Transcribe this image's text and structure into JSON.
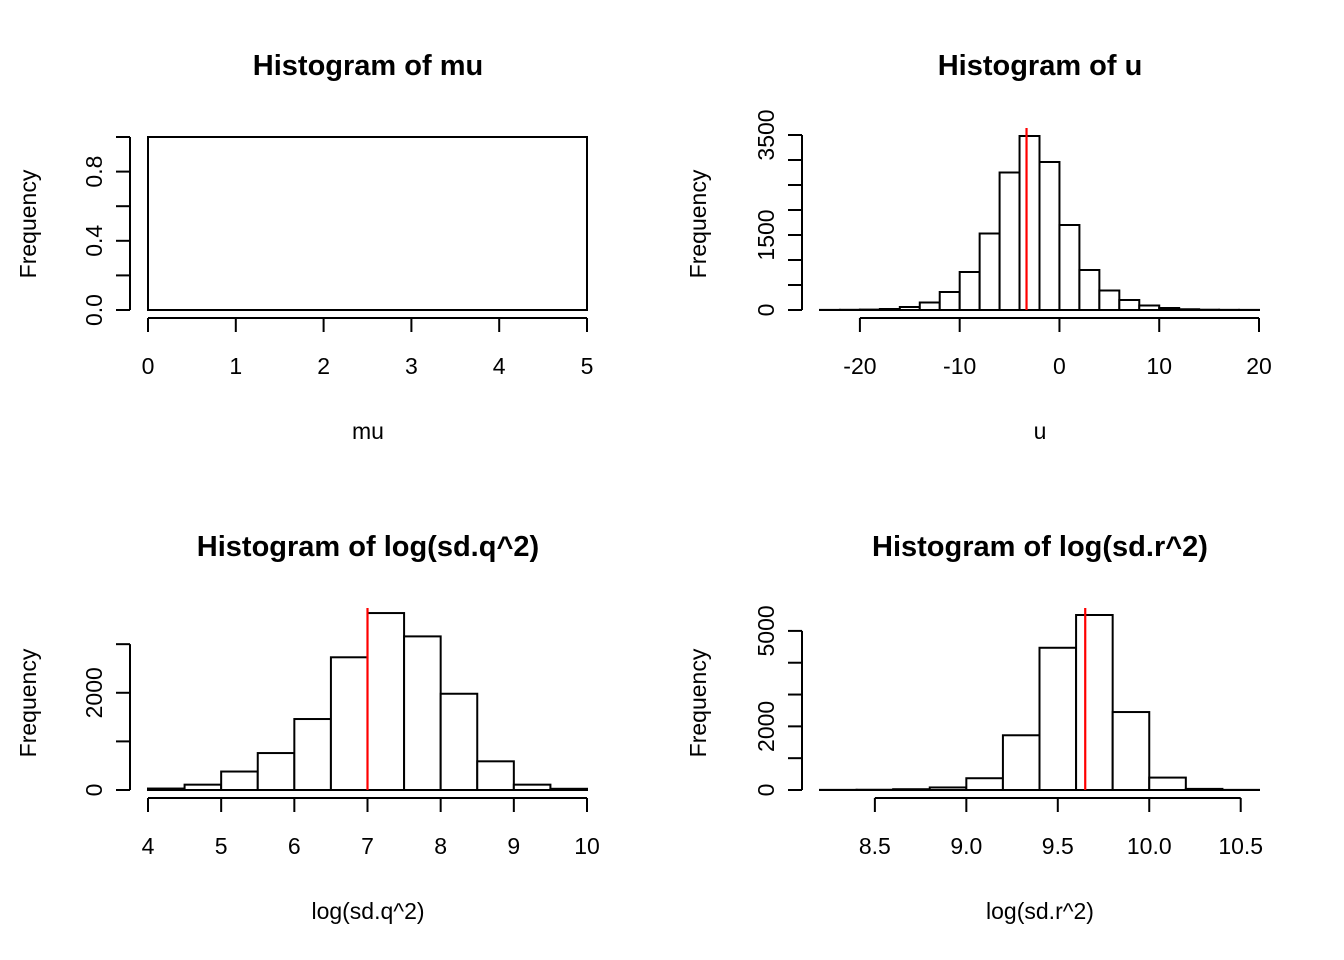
{
  "chart_data": [
    {
      "type": "bar",
      "title": "Histogram of mu",
      "xlabel": "mu",
      "ylabel": "Frequency",
      "xlim": [
        0,
        5
      ],
      "ylim": [
        0,
        1
      ],
      "x_ticks": [
        0,
        1,
        2,
        3,
        4,
        5
      ],
      "y_ticks": [
        0,
        0.2,
        0.4,
        0.6,
        0.8,
        1.0
      ],
      "y_tick_labels": [
        "0.0",
        "",
        "0.4",
        "",
        "0.8",
        ""
      ],
      "bins": [
        {
          "from": 0,
          "to": 5,
          "count": 1
        }
      ],
      "ref_line": null
    },
    {
      "type": "bar",
      "title": "Histogram of u",
      "xlabel": "u",
      "ylabel": "Frequency",
      "xlim": [
        -24,
        20
      ],
      "ylim": [
        0,
        3500
      ],
      "x_ticks": [
        -20,
        -10,
        0,
        10,
        20
      ],
      "y_ticks": [
        0,
        500,
        1000,
        1500,
        2000,
        2500,
        3000,
        3500
      ],
      "y_tick_labels": [
        "0",
        "",
        "",
        "1500",
        "",
        "",
        "",
        "3500"
      ],
      "bins": [
        {
          "from": -24,
          "to": -22,
          "count": 2
        },
        {
          "from": -22,
          "to": -20,
          "count": 4
        },
        {
          "from": -20,
          "to": -18,
          "count": 8
        },
        {
          "from": -18,
          "to": -16,
          "count": 20
        },
        {
          "from": -16,
          "to": -14,
          "count": 60
        },
        {
          "from": -14,
          "to": -12,
          "count": 150
        },
        {
          "from": -12,
          "to": -10,
          "count": 360
        },
        {
          "from": -10,
          "to": -8,
          "count": 760
        },
        {
          "from": -8,
          "to": -6,
          "count": 1530
        },
        {
          "from": -6,
          "to": -4,
          "count": 2750
        },
        {
          "from": -4,
          "to": -2,
          "count": 3480
        },
        {
          "from": -2,
          "to": 0,
          "count": 2960
        },
        {
          "from": 0,
          "to": 2,
          "count": 1700
        },
        {
          "from": 2,
          "to": 4,
          "count": 800
        },
        {
          "from": 4,
          "to": 6,
          "count": 390
        },
        {
          "from": 6,
          "to": 8,
          "count": 200
        },
        {
          "from": 8,
          "to": 10,
          "count": 90
        },
        {
          "from": 10,
          "to": 12,
          "count": 40
        },
        {
          "from": 12,
          "to": 14,
          "count": 15
        },
        {
          "from": 14,
          "to": 16,
          "count": 6
        },
        {
          "from": 16,
          "to": 18,
          "count": 3
        },
        {
          "from": 18,
          "to": 20,
          "count": 2
        }
      ],
      "ref_line": {
        "x": -3.3,
        "color": "#ff0000"
      }
    },
    {
      "type": "bar",
      "title": "Histogram of log(sd.q^2)",
      "xlabel": "log(sd.q^2)",
      "ylabel": "Frequency",
      "xlim": [
        4,
        10
      ],
      "ylim": [
        0,
        3600
      ],
      "x_ticks": [
        4,
        5,
        6,
        7,
        8,
        9,
        10
      ],
      "y_ticks": [
        0,
        1000,
        2000,
        3000
      ],
      "y_tick_labels": [
        "0",
        "",
        "2000",
        ""
      ],
      "bins": [
        {
          "from": 4.0,
          "to": 4.5,
          "count": 30
        },
        {
          "from": 4.5,
          "to": 5.0,
          "count": 110
        },
        {
          "from": 5.0,
          "to": 5.5,
          "count": 380
        },
        {
          "from": 5.5,
          "to": 6.0,
          "count": 760
        },
        {
          "from": 6.0,
          "to": 6.5,
          "count": 1460
        },
        {
          "from": 6.5,
          "to": 7.0,
          "count": 2730
        },
        {
          "from": 7.0,
          "to": 7.5,
          "count": 3640
        },
        {
          "from": 7.5,
          "to": 8.0,
          "count": 3160
        },
        {
          "from": 8.0,
          "to": 8.5,
          "count": 1980
        },
        {
          "from": 8.5,
          "to": 9.0,
          "count": 590
        },
        {
          "from": 9.0,
          "to": 9.5,
          "count": 110
        },
        {
          "from": 9.5,
          "to": 10.0,
          "count": 25
        }
      ],
      "ref_line": {
        "x": 7.0,
        "color": "#ff0000"
      }
    },
    {
      "type": "bar",
      "title": "Histogram of log(sd.r^2)",
      "xlabel": "log(sd.r^2)",
      "ylabel": "Frequency",
      "xlim": [
        8.2,
        10.6
      ],
      "ylim": [
        0,
        5500
      ],
      "x_ticks": [
        8.5,
        9.0,
        9.5,
        10.0,
        10.5
      ],
      "x_tick_labels": [
        "8.5",
        "9.0",
        "9.5",
        "10.0",
        "10.5"
      ],
      "y_ticks": [
        0,
        1000,
        2000,
        3000,
        4000,
        5000
      ],
      "y_tick_labels": [
        "0",
        "",
        "2000",
        "",
        "",
        "5000"
      ],
      "bins": [
        {
          "from": 8.2,
          "to": 8.4,
          "count": 4
        },
        {
          "from": 8.4,
          "to": 8.6,
          "count": 8
        },
        {
          "from": 8.6,
          "to": 8.8,
          "count": 25
        },
        {
          "from": 8.8,
          "to": 9.0,
          "count": 80
        },
        {
          "from": 9.0,
          "to": 9.2,
          "count": 370
        },
        {
          "from": 9.2,
          "to": 9.4,
          "count": 1720
        },
        {
          "from": 9.4,
          "to": 9.6,
          "count": 4470
        },
        {
          "from": 9.6,
          "to": 9.8,
          "count": 5500
        },
        {
          "from": 9.8,
          "to": 10.0,
          "count": 2450
        },
        {
          "from": 10.0,
          "to": 10.2,
          "count": 390
        },
        {
          "from": 10.2,
          "to": 10.4,
          "count": 35
        },
        {
          "from": 10.4,
          "to": 10.6,
          "count": 4
        }
      ],
      "ref_line": {
        "x": 9.65,
        "color": "#ff0000"
      }
    }
  ]
}
